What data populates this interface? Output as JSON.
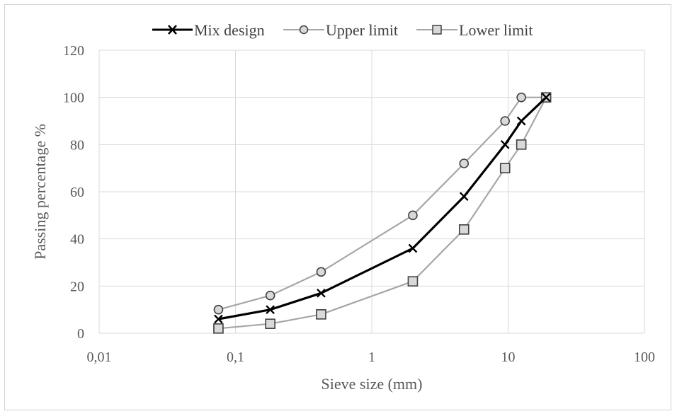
{
  "chart_data": {
    "type": "line",
    "title": "",
    "xlabel": "Sieve size (mm)",
    "ylabel": "Passing percentage %",
    "x_scale": "log",
    "xlim": [
      0.01,
      100
    ],
    "ylim": [
      0,
      120
    ],
    "x_ticks": [
      "0,01",
      "0,1",
      "1",
      "10",
      "100"
    ],
    "x_tick_values": [
      0.01,
      0.1,
      1,
      10,
      100
    ],
    "y_ticks": [
      "0",
      "20",
      "40",
      "60",
      "80",
      "100",
      "120"
    ],
    "y_tick_values": [
      0,
      20,
      40,
      60,
      80,
      100,
      120
    ],
    "grid": true,
    "legend_position": "top",
    "series": [
      {
        "name": "Mix design",
        "marker": "x",
        "color": "#000000",
        "x": [
          0.075,
          0.18,
          0.425,
          2,
          4.75,
          9.5,
          12.5,
          19
        ],
        "y": [
          6,
          10,
          17,
          36,
          58,
          80,
          90,
          100
        ]
      },
      {
        "name": "Upper limit",
        "marker": "circle",
        "color": "#a6a6a6",
        "x": [
          0.075,
          0.18,
          0.425,
          2,
          4.75,
          9.5,
          12.5,
          19
        ],
        "y": [
          10,
          16,
          26,
          50,
          72,
          90,
          100,
          100
        ]
      },
      {
        "name": "Lower limit",
        "marker": "square",
        "color": "#a6a6a6",
        "x": [
          0.075,
          0.18,
          0.425,
          2,
          4.75,
          9.5,
          12.5,
          19
        ],
        "y": [
          2,
          4,
          8,
          22,
          44,
          70,
          80,
          100
        ]
      }
    ]
  }
}
